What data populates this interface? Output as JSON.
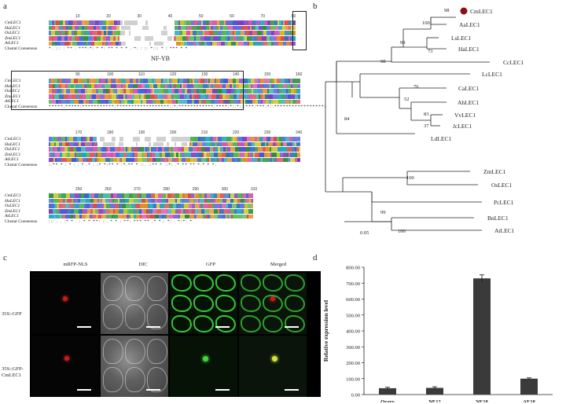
{
  "panels": {
    "a": "a",
    "b": "b",
    "c": "c",
    "d": "d"
  },
  "alignment": {
    "species": [
      "CmLEC1",
      "HaLEC1",
      "OsLEC1",
      "ZmLEC1",
      "AtLEC1"
    ],
    "consensus_label": "Clustal Consensus",
    "domain_label": "NF-YB",
    "blocks": [
      {
        "ticks": [
          "10",
          "20",
          "30",
          "40",
          "50",
          "60",
          "70",
          "80"
        ]
      },
      {
        "ticks": [
          "90",
          "100",
          "110",
          "120",
          "130",
          "140",
          "150",
          "160"
        ]
      },
      {
        "ticks": [
          "170",
          "180",
          "190",
          "200",
          "210",
          "220",
          "230",
          "240"
        ]
      },
      {
        "ticks": [
          "250",
          "260",
          "270",
          "280",
          "290",
          "300",
          "310"
        ]
      }
    ]
  },
  "tree": {
    "leaves": [
      "CmLEC1",
      "AaLEC1",
      "LsLEC1",
      "HaLEC1",
      "CcLEC1",
      "LcLEC1",
      "CaLEC1",
      "AhLEC1",
      "VvLEC1",
      "JcLEC1",
      "LdLEC1",
      "ZmLEC1",
      "OsLEC1",
      "PcLEC1",
      "BnLEC1",
      "AtLEC1"
    ],
    "bootstraps": [
      "98",
      "100",
      "98",
      "73",
      "98",
      "76",
      "52",
      "83",
      "37",
      "84",
      "100",
      "99",
      "100"
    ],
    "scale_label": "0.05",
    "highlight_color": "#8b1010"
  },
  "microscopy": {
    "columns": [
      "mRFP-NLS",
      "DIC",
      "GFP",
      "Merged"
    ],
    "rows": [
      "35S::GFP",
      "35S::GFP-CmLEC1"
    ]
  },
  "chart_data": {
    "type": "bar",
    "categories": [
      "Ovary",
      "NE12",
      "NE18",
      "AE18"
    ],
    "values": [
      40,
      42,
      730,
      100
    ],
    "errors": [
      6,
      7,
      22,
      5
    ],
    "ylabel": "Relative expression level",
    "ylim": [
      0,
      800
    ],
    "yticks": [
      "0.00",
      "100.00",
      "200.00",
      "300.00",
      "400.00",
      "500.00",
      "600.00",
      "700.00",
      "800.00"
    ],
    "bar_color": "#3a3a3a",
    "grid": false
  }
}
